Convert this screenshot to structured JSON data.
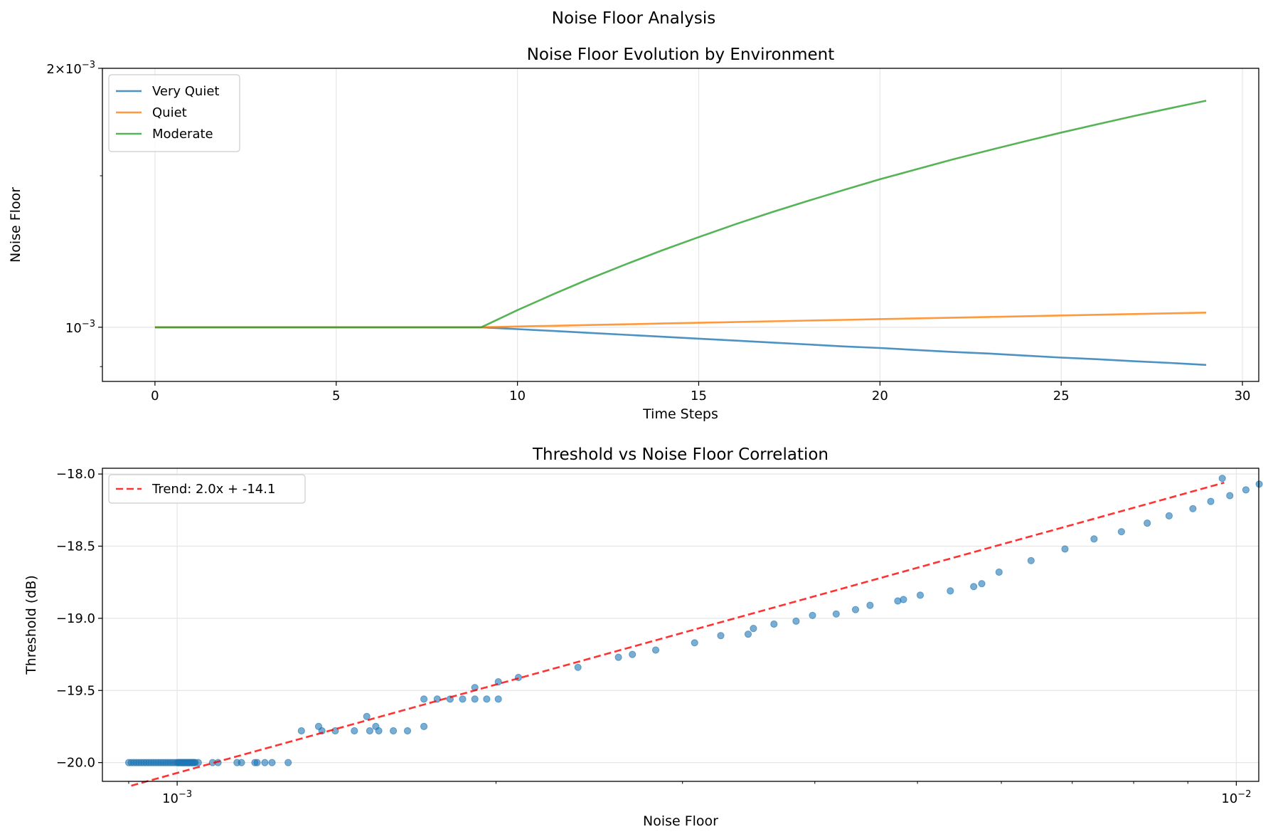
{
  "figure": {
    "suptitle": "Noise Floor Analysis"
  },
  "colors": {
    "very_quiet": "#1f77b4",
    "quiet": "#ff7f0e",
    "moderate": "#2ca02c",
    "scatter": "#1f77b4",
    "trend": "#ff0000"
  },
  "chart_data": [
    {
      "type": "line",
      "title": "Noise Floor Evolution by Environment",
      "xlabel": "Time Steps",
      "ylabel": "Noise Floor",
      "yscale": "log",
      "xlim": [
        -1.45,
        30.45
      ],
      "ylim": [
        0.000865,
        0.002
      ],
      "xticks": [
        0,
        5,
        10,
        15,
        20,
        25,
        30
      ],
      "ytick_labels": [
        {
          "value": 0.001,
          "base": "10",
          "exp": "−3"
        },
        {
          "value": 0.002,
          "mantissa": "2",
          "times": "×",
          "base": "10",
          "exp": "−3"
        }
      ],
      "grid": true,
      "legend": "upper left",
      "x": [
        0,
        1,
        2,
        3,
        4,
        5,
        6,
        7,
        8,
        9,
        10,
        11,
        12,
        13,
        14,
        15,
        16,
        17,
        18,
        19,
        20,
        21,
        22,
        23,
        24,
        25,
        26,
        27,
        28,
        29
      ],
      "series": [
        {
          "name": "Very Quiet",
          "color_key": "very_quiet",
          "values": [
            0.001,
            0.001,
            0.001,
            0.001,
            0.001,
            0.001,
            0.001,
            0.001,
            0.001,
            0.001,
            0.000995,
            0.00099,
            0.000985,
            0.00098,
            0.000975,
            0.00097,
            0.000965,
            0.00096,
            0.000955,
            0.00095,
            0.000946,
            0.000941,
            0.000936,
            0.000932,
            0.000927,
            0.000922,
            0.000918,
            0.000913,
            0.000909,
            0.000904
          ]
        },
        {
          "name": "Quiet",
          "color_key": "quiet",
          "values": [
            0.001,
            0.001,
            0.001,
            0.001,
            0.001,
            0.001,
            0.001,
            0.001,
            0.001,
            0.001,
            0.001002,
            0.001004,
            0.001006,
            0.001008,
            0.00101,
            0.001012,
            0.001014,
            0.001016,
            0.001018,
            0.00102,
            0.001022,
            0.001024,
            0.001026,
            0.001028,
            0.00103,
            0.001032,
            0.001034,
            0.001036,
            0.001038,
            0.00104
          ]
        },
        {
          "name": "Moderate",
          "color_key": "moderate",
          "values": [
            0.001,
            0.001,
            0.001,
            0.001,
            0.001,
            0.001,
            0.001,
            0.001,
            0.001,
            0.001,
            0.001047,
            0.001093,
            0.001139,
            0.001184,
            0.001229,
            0.001273,
            0.001317,
            0.00136,
            0.001402,
            0.001444,
            0.001486,
            0.001526,
            0.001567,
            0.001606,
            0.001645,
            0.001684,
            0.001722,
            0.00176,
            0.001797,
            0.001834
          ]
        }
      ]
    },
    {
      "type": "scatter",
      "title": "Threshold vs Noise Floor Correlation",
      "xlabel": "Noise Floor",
      "ylabel": "Threshold (dB)",
      "xscale": "log",
      "xlim": [
        0.00085,
        0.0105
      ],
      "ylim": [
        -20.13,
        -17.96
      ],
      "yticks": [
        -18.0,
        -18.5,
        -19.0,
        -19.5,
        -20.0
      ],
      "ytick_labels": [
        "−18.0",
        "−18.5",
        "−19.0",
        "−19.5",
        "−20.0"
      ],
      "xtick_labels": [
        {
          "value": 0.001,
          "base": "10",
          "exp": "−3"
        },
        {
          "value": 0.01,
          "base": "10",
          "exp": "−2"
        }
      ],
      "grid": true,
      "legend": "upper left",
      "series": [
        {
          "name": "",
          "color_key": "scatter",
          "points": [
            [
              0.0009,
              -20.0
            ],
            [
              0.000905,
              -20.0
            ],
            [
              0.00091,
              -20.0
            ],
            [
              0.000915,
              -20.0
            ],
            [
              0.00092,
              -20.0
            ],
            [
              0.000925,
              -20.0
            ],
            [
              0.00093,
              -20.0
            ],
            [
              0.000935,
              -20.0
            ],
            [
              0.00094,
              -20.0
            ],
            [
              0.000945,
              -20.0
            ],
            [
              0.00095,
              -20.0
            ],
            [
              0.000955,
              -20.0
            ],
            [
              0.00096,
              -20.0
            ],
            [
              0.000965,
              -20.0
            ],
            [
              0.00097,
              -20.0
            ],
            [
              0.000975,
              -20.0
            ],
            [
              0.00098,
              -20.0
            ],
            [
              0.000985,
              -20.0
            ],
            [
              0.00099,
              -20.0
            ],
            [
              0.000995,
              -20.0
            ],
            [
              0.001,
              -20.0
            ],
            [
              0.001002,
              -20.0
            ],
            [
              0.001004,
              -20.0
            ],
            [
              0.001006,
              -20.0
            ],
            [
              0.001008,
              -20.0
            ],
            [
              0.00101,
              -20.0
            ],
            [
              0.001012,
              -20.0
            ],
            [
              0.001014,
              -20.0
            ],
            [
              0.001016,
              -20.0
            ],
            [
              0.001018,
              -20.0
            ],
            [
              0.00102,
              -20.0
            ],
            [
              0.001022,
              -20.0
            ],
            [
              0.001024,
              -20.0
            ],
            [
              0.001026,
              -20.0
            ],
            [
              0.001028,
              -20.0
            ],
            [
              0.00103,
              -20.0
            ],
            [
              0.001032,
              -20.0
            ],
            [
              0.001034,
              -20.0
            ],
            [
              0.001036,
              -20.0
            ],
            [
              0.001038,
              -20.0
            ],
            [
              0.00104,
              -20.0
            ],
            [
              0.001047,
              -20.0
            ],
            [
              0.001093,
              -20.0
            ],
            [
              0.001139,
              -20.0
            ],
            [
              0.001184,
              -20.0
            ],
            [
              0.001229,
              -20.0
            ],
            [
              0.001273,
              -20.0
            ],
            [
              0.00108,
              -20.0
            ],
            [
              0.00115,
              -20.0
            ],
            [
              0.00119,
              -20.0
            ],
            [
              0.00121,
              -20.0
            ],
            [
              0.00131,
              -19.78
            ],
            [
              0.00137,
              -19.78
            ],
            [
              0.00141,
              -19.78
            ],
            [
              0.00147,
              -19.78
            ],
            [
              0.00152,
              -19.78
            ],
            [
              0.00155,
              -19.78
            ],
            [
              0.0016,
              -19.78
            ],
            [
              0.00165,
              -19.78
            ],
            [
              0.00136,
              -19.75
            ],
            [
              0.00154,
              -19.75
            ],
            [
              0.00171,
              -19.75
            ],
            [
              0.00151,
              -19.68
            ],
            [
              0.00171,
              -19.56
            ],
            [
              0.00176,
              -19.56
            ],
            [
              0.00181,
              -19.56
            ],
            [
              0.00186,
              -19.56
            ],
            [
              0.00191,
              -19.56
            ],
            [
              0.00196,
              -19.56
            ],
            [
              0.00201,
              -19.56
            ],
            [
              0.00191,
              -19.48
            ],
            [
              0.00201,
              -19.44
            ],
            [
              0.0021,
              -19.41
            ],
            [
              0.00239,
              -19.34
            ],
            [
              0.00261,
              -19.27
            ],
            [
              0.00269,
              -19.25
            ],
            [
              0.00283,
              -19.22
            ],
            [
              0.00308,
              -19.17
            ],
            [
              0.00326,
              -19.12
            ],
            [
              0.00346,
              -19.11
            ],
            [
              0.0035,
              -19.07
            ],
            [
              0.00366,
              -19.04
            ],
            [
              0.00384,
              -19.02
            ],
            [
              0.00398,
              -18.98
            ],
            [
              0.00419,
              -18.97
            ],
            [
              0.00437,
              -18.94
            ],
            [
              0.00451,
              -18.91
            ],
            [
              0.00479,
              -18.88
            ],
            [
              0.00485,
              -18.87
            ],
            [
              0.00503,
              -18.84
            ],
            [
              0.00537,
              -18.81
            ],
            [
              0.00565,
              -18.78
            ],
            [
              0.00575,
              -18.76
            ],
            [
              0.00597,
              -18.68
            ],
            [
              0.0064,
              -18.6
            ],
            [
              0.00689,
              -18.52
            ],
            [
              0.00734,
              -18.45
            ],
            [
              0.00779,
              -18.4
            ],
            [
              0.00824,
              -18.34
            ],
            [
              0.00864,
              -18.29
            ],
            [
              0.0091,
              -18.24
            ],
            [
              0.00946,
              -18.19
            ],
            [
              0.00986,
              -18.15
            ],
            [
              0.01021,
              -18.11
            ],
            [
              0.01051,
              -18.07
            ],
            [
              0.0097,
              -18.03
            ]
          ]
        },
        {
          "name": "Trend: 2.0x + -14.1",
          "color_key": "trend",
          "style": "dashed",
          "line": [
            [
              0.000905,
              -20.16
            ],
            [
              0.00974,
              -18.06
            ]
          ]
        }
      ]
    }
  ]
}
